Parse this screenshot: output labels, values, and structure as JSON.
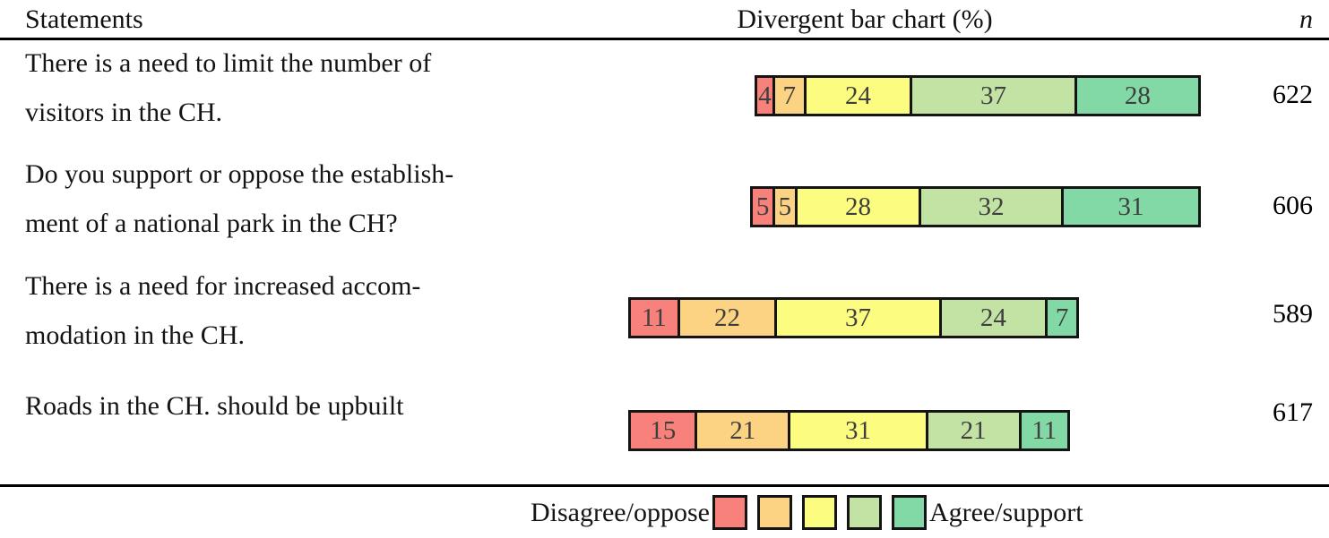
{
  "header": {
    "statements": "Statements",
    "chart": "Divergent bar chart (%)",
    "n": "n"
  },
  "legend": {
    "left_label": "Disagree/oppose",
    "right_label": "Agree/support"
  },
  "chart_data": {
    "type": "bar",
    "subtype": "divergent-stacked-likert",
    "unit": "percent",
    "title": "Divergent bar chart (%)",
    "alignment": "centered-on-neutral-midpoint",
    "legend": {
      "left": "Disagree/oppose",
      "right": "Agree/support",
      "position": "bottom"
    },
    "colors": [
      "#F8817B",
      "#FCD283",
      "#FCFC80",
      "#C2E3A3",
      "#83D9A6"
    ],
    "segment_border_color": "#141414",
    "value_label_color": "#3e3e3e",
    "rows": [
      {
        "statement_lines": [
          "There is a need to limit the number of",
          "visitors in the CH."
        ],
        "values": [
          4,
          7,
          24,
          37,
          28
        ],
        "n": "622"
      },
      {
        "statement_lines": [
          "Do you support or oppose the establish-",
          "ment of a national park in the CH?"
        ],
        "values": [
          5,
          5,
          28,
          32,
          31
        ],
        "n": "606"
      },
      {
        "statement_lines": [
          "There is a need for increased accom-",
          "modation in the CH."
        ],
        "values": [
          11,
          22,
          37,
          24,
          7
        ],
        "n": "589"
      },
      {
        "statement_lines": [
          "Roads in the CH. should be upbuilt"
        ],
        "values": [
          15,
          21,
          31,
          21,
          11
        ],
        "n": "617"
      }
    ]
  }
}
